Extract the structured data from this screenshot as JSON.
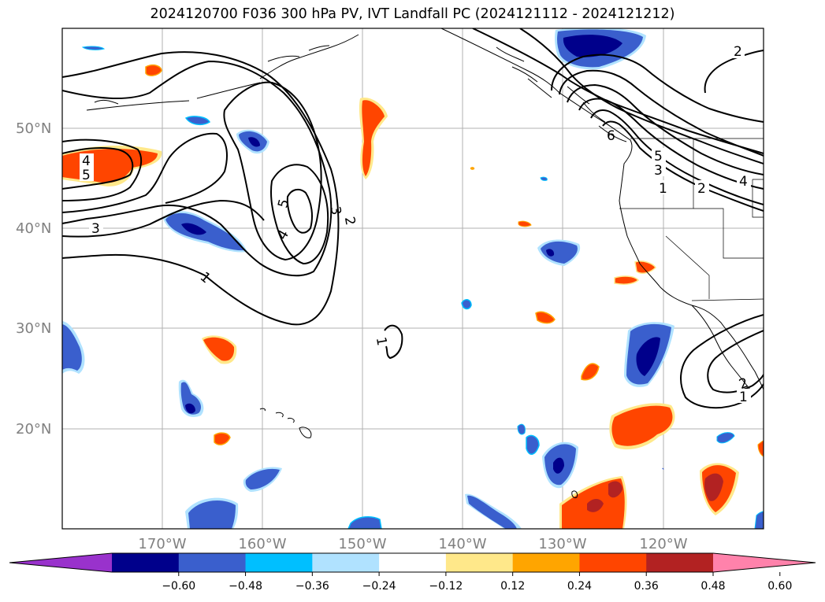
{
  "title": "2024120700 F036 300 hPa PV, IVT Landfall PC (2024121112 - 2024121212)",
  "latitude_labels": [
    "50°N",
    "40°N",
    "30°N",
    "20°N"
  ],
  "longitude_labels": [
    "170°W",
    "160°W",
    "150°W",
    "140°W",
    "130°W",
    "120°W"
  ],
  "colorbar": {
    "ticks": [
      "−0.60",
      "−0.48",
      "−0.36",
      "−0.24",
      "−0.12",
      "0.12",
      "0.24",
      "0.36",
      "0.48",
      "0.60"
    ],
    "colors": [
      "#9932cc",
      "#00008b",
      "#3a5fcd",
      "#00bfff",
      "#b0e2ff",
      "#ffffff",
      "#ffe88a",
      "#ffa500",
      "#ff4500",
      "#b22222",
      "#ff82ab"
    ],
    "extend": "both"
  },
  "contour_labels": [
    "2",
    "4",
    "5",
    "3",
    "5",
    "4",
    "3",
    "2",
    "1",
    "1",
    "6",
    "5",
    "3",
    "1",
    "2",
    "4",
    "2",
    "1",
    "1"
  ],
  "map": {
    "projection": "cylindrical",
    "lon_range": [
      -180,
      -110
    ],
    "lat_range": [
      10,
      60
    ],
    "gridlines": true
  }
}
